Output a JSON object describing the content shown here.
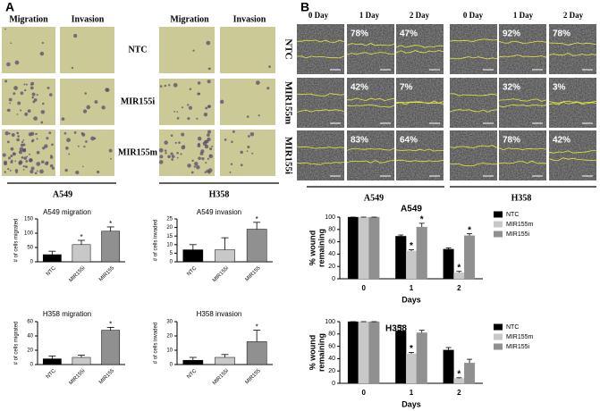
{
  "figure": {
    "panel_labels": [
      "A",
      "B"
    ]
  },
  "panel_a": {
    "column_headers": [
      "Migration",
      "Invasion",
      "Migration",
      "Invasion"
    ],
    "row_labels": [
      "NTC",
      "MIR155i",
      "MIR155m"
    ],
    "cell_lines": [
      "A549",
      "H358"
    ]
  },
  "panel_b": {
    "column_headers": [
      "0 Day",
      "1 Day",
      "2 Day",
      "0 Day",
      "1 Day",
      "2 Day"
    ],
    "row_labels": [
      "NTC",
      "MIR155m",
      "MIR155i"
    ],
    "percent_labels": [
      [
        "78%",
        "47%",
        "92%",
        "78%"
      ],
      [
        "42%",
        "7%",
        "32%",
        "3%"
      ],
      [
        "83%",
        "64%",
        "78%",
        "42%"
      ]
    ],
    "cell_lines": [
      "A549",
      "H358"
    ]
  },
  "chart_data": [
    {
      "type": "bar",
      "title": "A549 migration",
      "ylabel": "# of cells migrated",
      "categories": [
        "NTC",
        "MIR155i",
        "MIR155"
      ],
      "values": [
        25,
        60,
        107
      ],
      "errors": [
        12,
        15,
        15
      ],
      "colors": [
        "#000000",
        "#c8c8c8",
        "#909090"
      ],
      "significant": [
        false,
        true,
        true
      ],
      "star": "*",
      "ylim": [
        0,
        150
      ],
      "yticks": [
        0,
        50,
        100,
        150
      ]
    },
    {
      "type": "bar",
      "title": "A549 invasion",
      "ylabel": "# of cells invaded",
      "categories": [
        "NTC",
        "MIR155i",
        "MIR155"
      ],
      "values": [
        7,
        7,
        19
      ],
      "errors": [
        3,
        7,
        4
      ],
      "colors": [
        "#000000",
        "#c8c8c8",
        "#909090"
      ],
      "significant": [
        false,
        false,
        true
      ],
      "star": "*",
      "ylim": [
        0,
        25
      ],
      "yticks": [
        0,
        5,
        10,
        15,
        20,
        25
      ]
    },
    {
      "type": "bar",
      "title": "H358 migration",
      "ylabel": "# of cells migrated",
      "categories": [
        "NTC",
        "MIR155i",
        "MIR155"
      ],
      "values": [
        8,
        10,
        48
      ],
      "errors": [
        4,
        3,
        4
      ],
      "colors": [
        "#000000",
        "#c8c8c8",
        "#909090"
      ],
      "significant": [
        false,
        false,
        true
      ],
      "star": "*",
      "ylim": [
        0,
        60
      ],
      "yticks": [
        0,
        20,
        40,
        60
      ]
    },
    {
      "type": "bar",
      "title": "H358 invasion",
      "ylabel": "# of cells invaded",
      "categories": [
        "NTC",
        "MIR155i",
        "MIR155"
      ],
      "values": [
        3,
        5,
        16
      ],
      "errors": [
        2,
        2,
        8
      ],
      "colors": [
        "#000000",
        "#c8c8c8",
        "#909090"
      ],
      "significant": [
        false,
        false,
        true
      ],
      "star": "*",
      "ylim": [
        0,
        30
      ],
      "yticks": [
        0,
        10,
        20,
        30
      ]
    },
    {
      "type": "grouped_bar",
      "title": "A549",
      "xlabel": "Days",
      "ylabel": [
        "% wound",
        "remaining"
      ],
      "categories": [
        "0",
        "1",
        "2"
      ],
      "series": [
        {
          "name": "NTC",
          "color": "#000000",
          "values": [
            100,
            69,
            48
          ],
          "errors": [
            0,
            2,
            2
          ],
          "significant": [
            false,
            false,
            false
          ]
        },
        {
          "name": "MIR155m",
          "color": "#c8c8c8",
          "values": [
            100,
            45,
            10
          ],
          "errors": [
            0,
            2,
            2
          ],
          "significant": [
            false,
            true,
            true
          ]
        },
        {
          "name": "MIR155i",
          "color": "#909090",
          "values": [
            100,
            84,
            70
          ],
          "errors": [
            0,
            6,
            3
          ],
          "significant": [
            false,
            true,
            true
          ]
        }
      ],
      "star": "*",
      "ylim": [
        0,
        100
      ],
      "yticks": [
        0,
        20,
        40,
        60,
        80,
        100
      ]
    },
    {
      "type": "grouped_bar",
      "title": "H358",
      "xlabel": "Days",
      "ylabel": [
        "% wound",
        "remaining"
      ],
      "categories": [
        "0",
        "1",
        "2"
      ],
      "series": [
        {
          "name": "NTC",
          "color": "#000000",
          "values": [
            100,
            85,
            54
          ],
          "errors": [
            0,
            8,
            4
          ],
          "significant": [
            false,
            false,
            false
          ]
        },
        {
          "name": "MIR155m",
          "color": "#c8c8c8",
          "values": [
            100,
            48,
            8
          ],
          "errors": [
            0,
            2,
            1
          ],
          "significant": [
            false,
            true,
            true
          ]
        },
        {
          "name": "MIR155i",
          "color": "#909090",
          "values": [
            100,
            82,
            33
          ],
          "errors": [
            0,
            4,
            6
          ],
          "significant": [
            false,
            false,
            false
          ]
        }
      ],
      "star": "*",
      "ylim": [
        0,
        100
      ],
      "yticks": [
        0,
        20,
        40,
        60,
        80,
        100
      ]
    }
  ]
}
